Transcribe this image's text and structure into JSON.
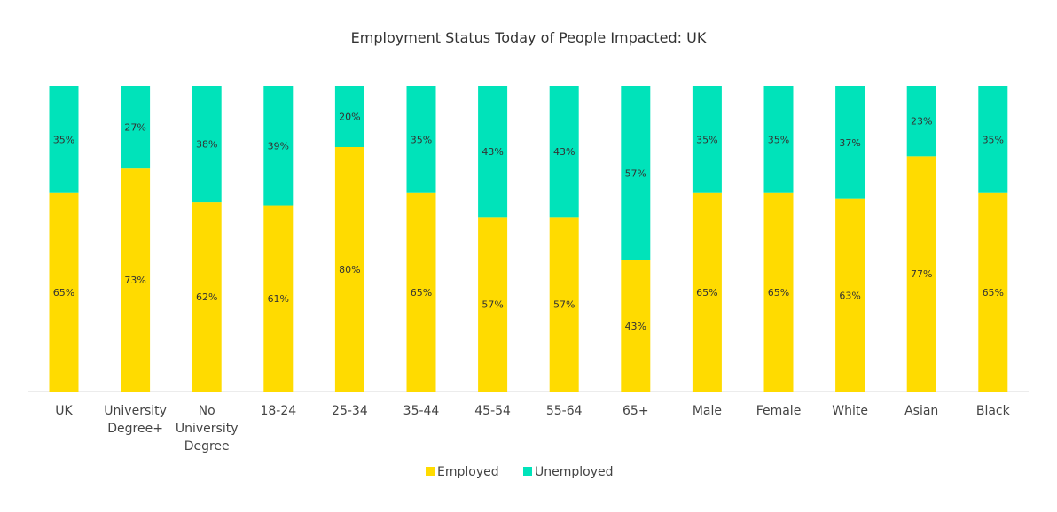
{
  "chart_data": {
    "type": "bar",
    "stacked": true,
    "title": "Employment Status Today of People Impacted: UK",
    "categories": [
      [
        "UK"
      ],
      [
        "University",
        "Degree+"
      ],
      [
        "No",
        "University",
        "Degree"
      ],
      [
        "18-24"
      ],
      [
        "25-34"
      ],
      [
        "35-44"
      ],
      [
        "45-54"
      ],
      [
        "55-64"
      ],
      [
        "65+"
      ],
      [
        "Male"
      ],
      [
        "Female"
      ],
      [
        "White"
      ],
      [
        "Asian"
      ],
      [
        "Black"
      ]
    ],
    "series": [
      {
        "name": "Employed",
        "color": "#FFDB00",
        "values": [
          65,
          73,
          62,
          61,
          80,
          65,
          57,
          57,
          43,
          65,
          65,
          63,
          77,
          65
        ]
      },
      {
        "name": "Unemployed",
        "color": "#00E3BA",
        "values": [
          35,
          27,
          38,
          39,
          20,
          35,
          43,
          43,
          57,
          35,
          35,
          37,
          23,
          35
        ]
      }
    ],
    "value_suffix": "%",
    "ylim": [
      0,
      100
    ],
    "grid": false,
    "legend": "bottom"
  }
}
